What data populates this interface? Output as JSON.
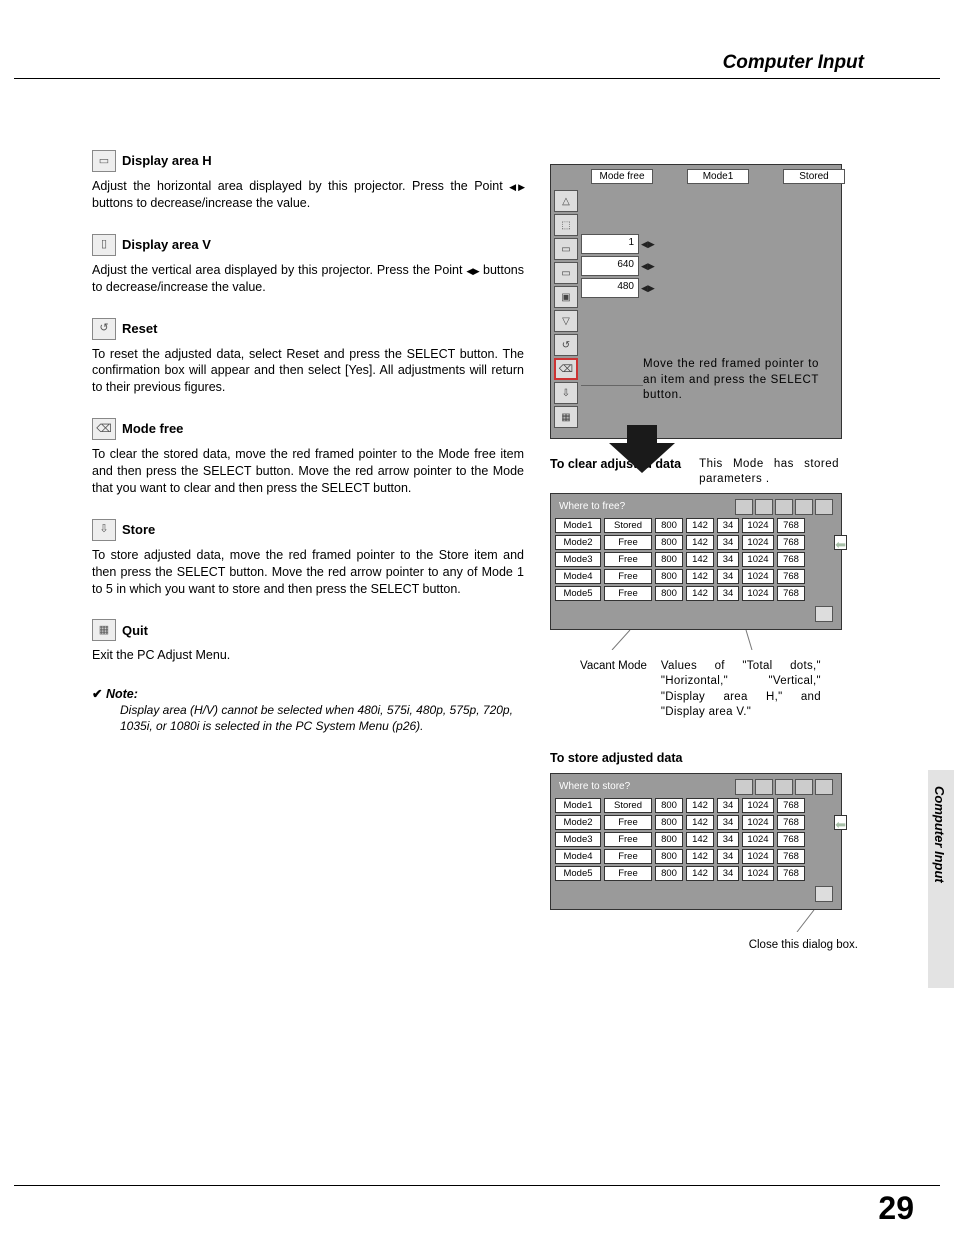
{
  "page": {
    "section_title": "Computer Input",
    "side_tab": "Computer Input",
    "number": "29"
  },
  "sections": {
    "display_h": {
      "title": "Display area H",
      "body_a": "Adjust the horizontal area displayed by this projector.  Press the Point ",
      "body_b": " buttons to decrease/increase the value."
    },
    "display_v": {
      "title": "Display area V",
      "body_a": "Adjust the vertical area displayed by this projector.  Press the Point ",
      "body_b": " buttons to decrease/increase the value."
    },
    "reset": {
      "title": "Reset",
      "body": "To reset the adjusted data, select Reset and press the SELECT button.  The confirmation box will appear and then select [Yes].  All adjustments will return to their previous figures."
    },
    "mode_free": {
      "title": "Mode free",
      "body": "To clear the stored data, move the red framed pointer to the Mode free item and then press the SELECT button.  Move the red arrow pointer to the Mode that you want to clear and then press the SELECT button."
    },
    "store": {
      "title": "Store",
      "body": "To store adjusted data, move the red framed pointer to the Store item and then press the SELECT button.  Move the red arrow pointer to any of Mode 1 to 5 in which you want to store and then press the SELECT button."
    },
    "quit": {
      "title": "Quit",
      "body": "Exit the PC Adjust Menu."
    },
    "note": {
      "head": "Note:",
      "body": "Display area (H/V) cannot be selected when 480i, 575i, 480p, 575p, 720p, 1035i, or 1080i is selected in the PC System Menu (p26)."
    }
  },
  "menu": {
    "top": [
      "Mode free",
      "Mode1",
      "Stored"
    ],
    "icon_glyphs": [
      "△",
      "⬚",
      "▭",
      "▭",
      "▣",
      "▽",
      "↺",
      "⌫",
      "⇩",
      "▦"
    ],
    "values": [
      "1",
      "640",
      "480"
    ],
    "callout": "Move the red framed pointer to an item and press the SELECT button."
  },
  "clear": {
    "heading": "To clear adjusted data",
    "note": "This Mode has stored parameters .",
    "table_title": "Where to free?",
    "rows": [
      [
        "Mode1",
        "Stored",
        "800",
        "142",
        "34",
        "1024",
        "768"
      ],
      [
        "Mode2",
        "Free",
        "800",
        "142",
        "34",
        "1024",
        "768"
      ],
      [
        "Mode3",
        "Free",
        "800",
        "142",
        "34",
        "1024",
        "768"
      ],
      [
        "Mode4",
        "Free",
        "800",
        "142",
        "34",
        "1024",
        "768"
      ],
      [
        "Mode5",
        "Free",
        "800",
        "142",
        "34",
        "1024",
        "768"
      ]
    ],
    "pointer_row": 1,
    "annot_left": "Vacant Mode",
    "annot_right": "Values of \"Total dots,\" \"Horizontal,\" \"Vertical,\" \"Display area H,\" and \"Display area V.\""
  },
  "store": {
    "heading": "To store adjusted data",
    "table_title": "Where to store?",
    "rows": [
      [
        "Mode1",
        "Stored",
        "800",
        "142",
        "34",
        "1024",
        "768"
      ],
      [
        "Mode2",
        "Free",
        "800",
        "142",
        "34",
        "1024",
        "768"
      ],
      [
        "Mode3",
        "Free",
        "800",
        "142",
        "34",
        "1024",
        "768"
      ],
      [
        "Mode4",
        "Free",
        "800",
        "142",
        "34",
        "1024",
        "768"
      ],
      [
        "Mode5",
        "Free",
        "800",
        "142",
        "34",
        "1024",
        "768"
      ]
    ],
    "pointer_row": 1,
    "close_annot": "Close this dialog box."
  },
  "style": {
    "gray": "#9a9a9a",
    "sel_border": "#c33"
  }
}
